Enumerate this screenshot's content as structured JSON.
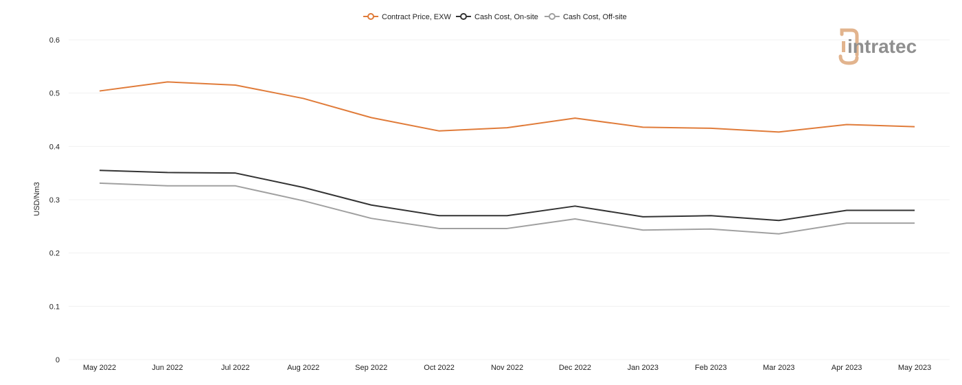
{
  "chart_data": {
    "type": "line",
    "categories": [
      "May 2022",
      "Jun 2022",
      "Jul 2022",
      "Aug 2022",
      "Sep 2022",
      "Oct 2022",
      "Nov 2022",
      "Dec 2022",
      "Jan 2023",
      "Feb 2023",
      "Mar 2023",
      "Apr 2023",
      "May 2023"
    ],
    "series": [
      {
        "name": "Contract Price, EXW",
        "color": "#e07b39",
        "values": [
          0.504,
          0.521,
          0.515,
          0.49,
          0.454,
          0.429,
          0.435,
          0.453,
          0.436,
          0.434,
          0.427,
          0.441,
          0.437
        ]
      },
      {
        "name": "Cash Cost, On-site",
        "color": "#333333",
        "values": [
          0.355,
          0.351,
          0.35,
          0.323,
          0.29,
          0.27,
          0.27,
          0.288,
          0.268,
          0.27,
          0.261,
          0.28,
          0.28
        ]
      },
      {
        "name": "Cash Cost, Off-site",
        "color": "#a0a0a0",
        "values": [
          0.331,
          0.326,
          0.326,
          0.298,
          0.265,
          0.246,
          0.246,
          0.264,
          0.243,
          0.245,
          0.236,
          0.256,
          0.256
        ]
      }
    ],
    "yticks": [
      "0",
      "0.1",
      "0.2",
      "0.3",
      "0.4",
      "0.5",
      "0.6"
    ],
    "ylim": [
      0,
      0.6
    ],
    "ylabel": "USD/Nm3",
    "xlabel": "",
    "grid": true,
    "legend_position": "top-center"
  },
  "logo": {
    "text": "intratec",
    "icon_color": "#e2b48e",
    "text_color": "#8f8f8f"
  }
}
